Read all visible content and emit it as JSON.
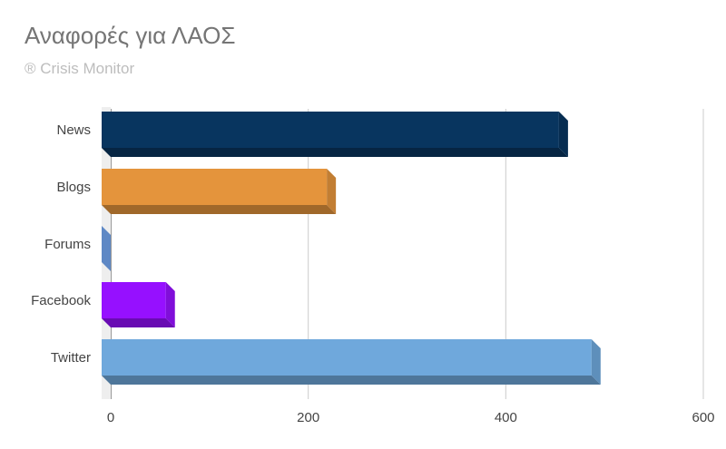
{
  "title": "Αναφορές για ΛΑΟΣ",
  "subtitle": "® Crisis Monitor",
  "chart_data": {
    "type": "bar",
    "orientation": "horizontal",
    "three_d": true,
    "categories": [
      "News",
      "Blogs",
      "Forums",
      "Facebook",
      "Twitter"
    ],
    "values": [
      463,
      228,
      0,
      65,
      496
    ],
    "colors": [
      "#08355f",
      "#e4943c",
      "#6ea0e8",
      "#9610ff",
      "#6fa8dc"
    ],
    "xlim": [
      0,
      600
    ],
    "xticks": [
      0,
      200,
      400,
      600
    ],
    "grid": true,
    "legend": "none"
  }
}
